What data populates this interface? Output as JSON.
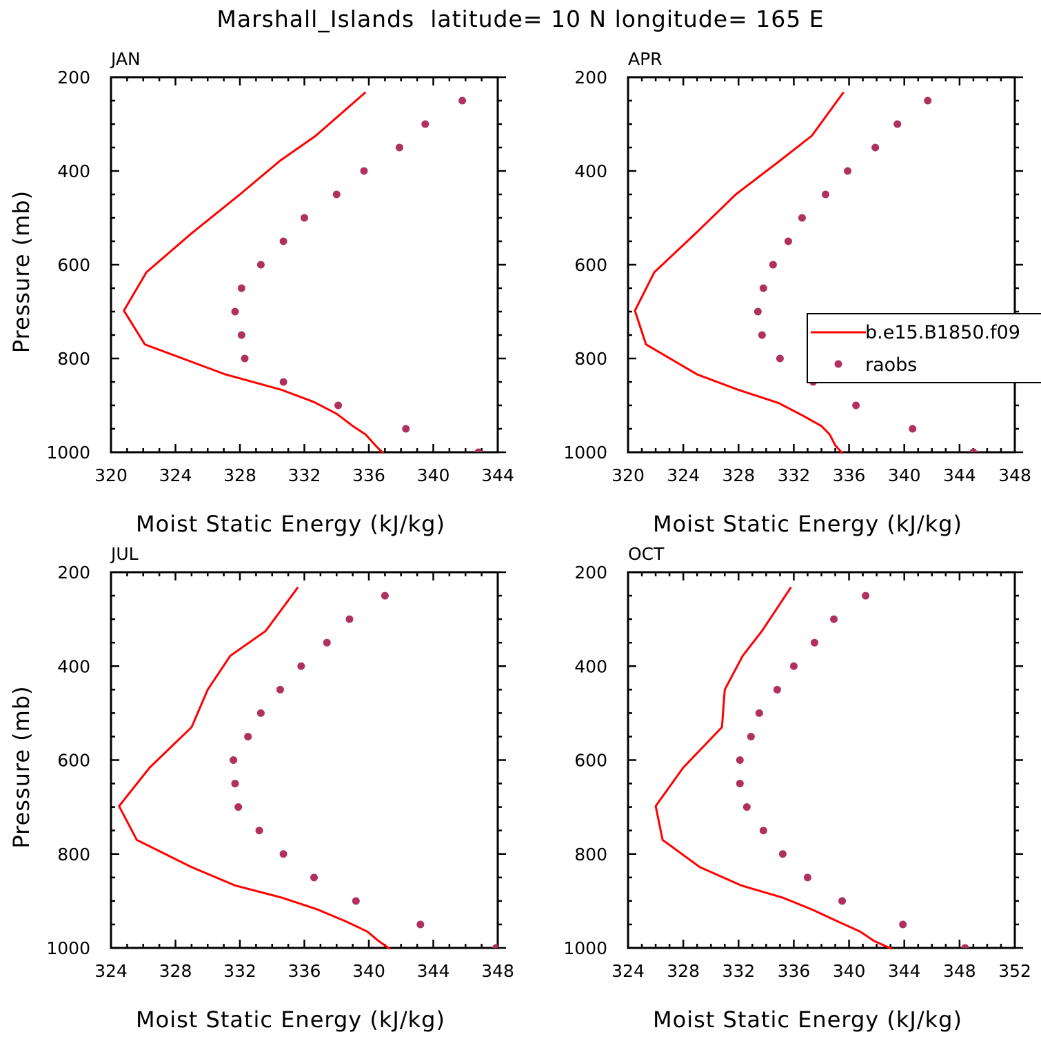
{
  "title": "Marshall_Islands  latitude= 10 N longitude= 165 E",
  "colors": {
    "model": "#ff0000",
    "obs": "#b03060",
    "axis": "#000000"
  },
  "chart_data": [
    {
      "type": "line",
      "panel": "JAN",
      "xlabel": "Moist Static Energy (kJ/kg)",
      "ylabel": "Pressure (mb)",
      "xlim": [
        320,
        344
      ],
      "ylim": [
        1000,
        200
      ],
      "xticks": [
        320,
        324,
        328,
        332,
        336,
        340,
        344
      ],
      "yticks": [
        200,
        400,
        600,
        800,
        1000
      ],
      "legend": null,
      "series": [
        {
          "name": "b.e15.B1850.f09",
          "kind": "line",
          "x": [
            336.9,
            336.4,
            335.8,
            335.0,
            334.0,
            332.6,
            330.6,
            327.1,
            322.1,
            320.8,
            322.2,
            325.0,
            328.0,
            330.5,
            332.7,
            335.8
          ],
          "y": [
            1002,
            985,
            962,
            944,
            918,
            893,
            867,
            834,
            770,
            698,
            616,
            533,
            450,
            378,
            325,
            232
          ]
        },
        {
          "name": "raobs",
          "kind": "scatter",
          "x": [
            342.8,
            338.3,
            334.1,
            330.7,
            328.3,
            328.1,
            327.7,
            328.1,
            329.3,
            330.7,
            332.0,
            334.0,
            335.7,
            337.9,
            339.5,
            341.8
          ],
          "y": [
            1000,
            950,
            900,
            850,
            800,
            750,
            700,
            650,
            600,
            550,
            500,
            450,
            400,
            350,
            300,
            250
          ]
        }
      ]
    },
    {
      "type": "line",
      "panel": "APR",
      "xlabel": "Moist Static Energy (kJ/kg)",
      "ylabel": "",
      "xlim": [
        320,
        348
      ],
      "ylim": [
        1000,
        200
      ],
      "xticks": [
        320,
        324,
        328,
        332,
        336,
        340,
        344,
        348
      ],
      "yticks": [
        200,
        400,
        600,
        800,
        1000
      ],
      "legend": {
        "position": "right",
        "entries": [
          "b.e15.B1850.f09",
          "raobs"
        ]
      },
      "series": [
        {
          "name": "b.e15.B1850.f09",
          "kind": "line",
          "x": [
            335.5,
            335.0,
            334.6,
            334.0,
            332.6,
            330.9,
            328.0,
            325.0,
            321.3,
            320.5,
            321.9,
            324.9,
            327.8,
            331.0,
            333.3,
            335.6
          ],
          "y": [
            1002,
            985,
            962,
            944,
            921,
            895,
            867,
            834,
            770,
            698,
            616,
            533,
            450,
            378,
            325,
            232
          ]
        },
        {
          "name": "raobs",
          "kind": "scatter",
          "x": [
            345.0,
            340.6,
            336.5,
            333.4,
            331.0,
            329.7,
            329.4,
            329.8,
            330.5,
            331.6,
            332.6,
            334.3,
            335.9,
            337.9,
            339.5,
            341.7
          ],
          "y": [
            1000,
            950,
            900,
            850,
            800,
            750,
            700,
            650,
            600,
            550,
            500,
            450,
            400,
            350,
            300,
            250
          ]
        }
      ]
    },
    {
      "type": "line",
      "panel": "JUL",
      "xlabel": "Moist Static Energy (kJ/kg)",
      "ylabel": "Pressure (mb)",
      "xlim": [
        324,
        348
      ],
      "ylim": [
        1000,
        200
      ],
      "xticks": [
        324,
        328,
        332,
        336,
        340,
        344,
        348
      ],
      "yticks": [
        200,
        400,
        600,
        800,
        1000
      ],
      "legend": null,
      "series": [
        {
          "name": "b.e15.B1850.f09",
          "kind": "line",
          "x": [
            341.3,
            340.6,
            339.9,
            338.6,
            336.8,
            334.6,
            331.7,
            329.0,
            325.6,
            324.5,
            326.4,
            329.0,
            330.0,
            331.4,
            333.6,
            335.6
          ],
          "y": [
            1002,
            985,
            965,
            944,
            918,
            893,
            867,
            828,
            770,
            698,
            616,
            530,
            450,
            378,
            325,
            232
          ]
        },
        {
          "name": "raobs",
          "kind": "scatter",
          "x": [
            347.9,
            343.2,
            339.2,
            336.6,
            334.7,
            333.2,
            331.9,
            331.7,
            331.6,
            332.5,
            333.3,
            334.5,
            335.8,
            337.4,
            338.8,
            341.0
          ],
          "y": [
            1000,
            950,
            900,
            850,
            800,
            750,
            700,
            650,
            600,
            550,
            500,
            450,
            400,
            350,
            300,
            250
          ]
        }
      ]
    },
    {
      "type": "line",
      "panel": "OCT",
      "xlabel": "Moist Static Energy (kJ/kg)",
      "ylabel": "",
      "xlim": [
        324,
        352
      ],
      "ylim": [
        1000,
        200
      ],
      "xticks": [
        324,
        328,
        332,
        336,
        340,
        344,
        348,
        352
      ],
      "yticks": [
        200,
        400,
        600,
        800,
        1000
      ],
      "legend": null,
      "series": [
        {
          "name": "b.e15.B1850.f09",
          "kind": "line",
          "x": [
            343.1,
            341.8,
            340.8,
            339.2,
            337.3,
            335.2,
            332.2,
            329.2,
            326.5,
            326.0,
            328.0,
            330.8,
            331.0,
            332.3,
            333.7,
            335.8
          ],
          "y": [
            1002,
            985,
            965,
            944,
            918,
            893,
            867,
            828,
            770,
            698,
            616,
            530,
            450,
            378,
            325,
            232
          ]
        },
        {
          "name": "raobs",
          "kind": "scatter",
          "x": [
            348.4,
            343.9,
            339.5,
            337.0,
            335.2,
            333.8,
            332.6,
            332.1,
            332.1,
            332.9,
            333.5,
            334.8,
            336.0,
            337.5,
            338.9,
            341.2
          ],
          "y": [
            1000,
            950,
            900,
            850,
            800,
            750,
            700,
            650,
            600,
            550,
            500,
            450,
            400,
            350,
            300,
            250
          ]
        }
      ]
    }
  ]
}
